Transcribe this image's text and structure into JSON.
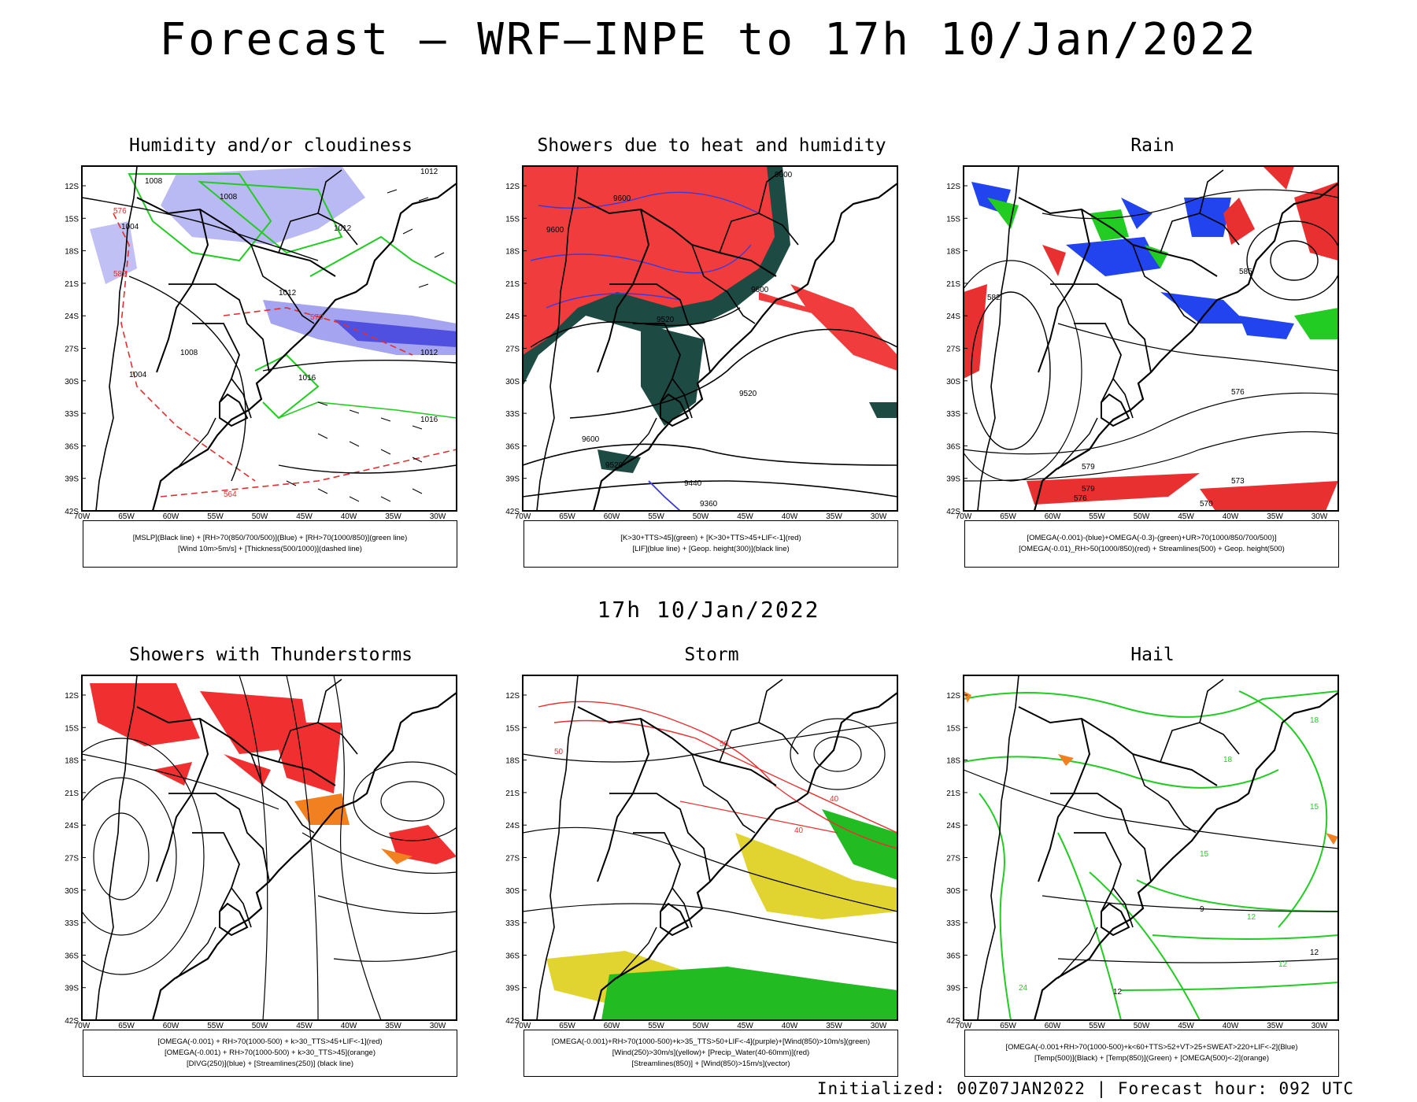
{
  "header": {
    "title": "Forecast – WRF–INPE to 17h 10/Jan/2022",
    "subtitle": "17h 10/Jan/2022",
    "footer": "Initialized: 00Z07JAN2022 | Forecast hour: 092 UTC"
  },
  "axes": {
    "lat_labels": [
      "12S",
      "15S",
      "18S",
      "21S",
      "24S",
      "27S",
      "30S",
      "33S",
      "36S",
      "39S",
      "42S"
    ],
    "lon_labels": [
      "70W",
      "65W",
      "60W",
      "55W",
      "50W",
      "45W",
      "40W",
      "35W",
      "30W"
    ]
  },
  "panels": [
    {
      "title": "Humidity and/or cloudiness",
      "legend": [
        "[MSLP](Black line) + [RH>70(850/700/500)](Blue) + [RH>70(1000/850)](green line)",
        "[Wind 10m>5m/s] + [Thickness(500/1000)](dashed line)"
      ],
      "contour_labels": [
        "1008",
        "1004",
        "1008",
        "1012",
        "1012",
        "1012",
        "1016",
        "1016",
        "1012",
        "576",
        "570",
        "564",
        "582",
        "1008",
        "1004"
      ],
      "colors": {
        "rh_mid": "#8c8ce8",
        "rh_low": "#22cc22",
        "thickness": "#e03030"
      }
    },
    {
      "title": "Showers due to heat and humidity",
      "legend": [
        "[K>30+TTS>45](green) + [K>30+TTS>45+LIF<-1](red)",
        "[LIF](blue line) + [Geop. height(300)](black line)"
      ],
      "contour_labels": [
        "9600",
        "9600",
        "9600",
        "9600",
        "9520",
        "9520",
        "9600",
        "9520",
        "9440",
        "9360"
      ],
      "colors": {
        "k_tts": "#1e4a44",
        "k_tts_lif": "#f03c3c",
        "lif": "#3a3ae0"
      }
    },
    {
      "title": "Rain",
      "legend": [
        "[OMEGA(-0.001)-(blue)+OMEGA(-0.3)-(green)+UR>70(1000/850/700/500)]",
        "[OMEGA(-0.01)_RH>50(1000/850)(red) + Streamlines(500) + Geop. height(500)"
      ],
      "contour_labels": [
        "585",
        "576",
        "579",
        "573",
        "570",
        "579",
        "576",
        "582"
      ],
      "colors": {
        "omega_weak": "#2244ee",
        "omega_strong": "#22cc22",
        "omega_rh": "#e83030"
      }
    },
    {
      "title": "Showers with Thunderstorms",
      "legend": [
        "[OMEGA(-0.001) + RH>70(1000-500) + k>30_TTS>45+LIF<-1](red)",
        "[OMEGA(-0.001) + RH>70(1000-500) + k>30_TTS>45](orange)",
        "[DIVG(250)](blue) + [Streamlines(250)] (black line)"
      ],
      "contour_labels": [],
      "colors": {
        "red": "#f03030",
        "orange": "#f08020",
        "divg": "#2233ee"
      }
    },
    {
      "title": "Storm",
      "legend": [
        "[OMEGA(-0.001)+RH>70(1000-500)+k>35_TTS>50+LIF<-4](purple)+[Wind(850)>10m/s](green)",
        "[Wind(250)>30m/s](yellow)+ [Precip_Water(40-60mm)](red)",
        "[Streamlines(850)] + [Wind(850)>15m/s](vector)"
      ],
      "contour_labels": [
        "50",
        "40",
        "40",
        "50"
      ],
      "colors": {
        "purple": "#b020c0",
        "green": "#22bb22",
        "yellow": "#e2d430",
        "red": "#e83030"
      }
    },
    {
      "title": "Hail",
      "legend": [
        "[OMEGA(-0.001+RH>70(1000-500)+k<60+TTS>52+VT>25+SWEAT>220+LIF<-2](Blue)",
        "[Temp(500)](Black) + [Temp(850)](Green) + [OMEGA(500)<-2](orange)"
      ],
      "contour_labels": [
        "18",
        "15",
        "15",
        "12",
        "12",
        "9",
        "12",
        "24",
        "12",
        "18"
      ],
      "colors": {
        "temp850": "#22cc22",
        "omega": "#f08020",
        "blue": "#2233ee"
      }
    }
  ]
}
